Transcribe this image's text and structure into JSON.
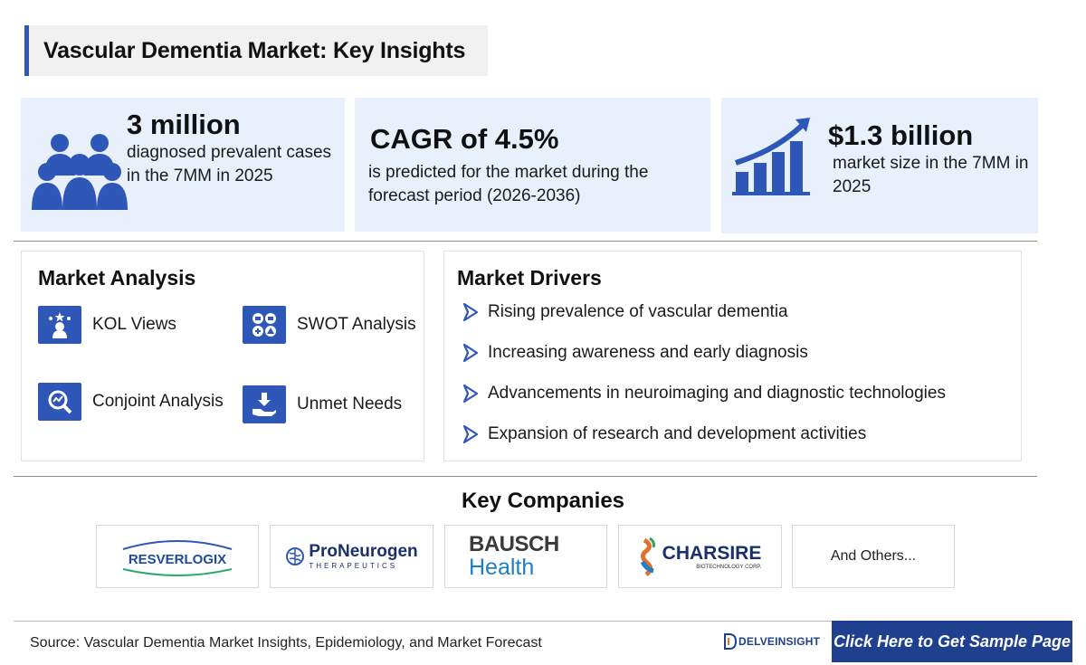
{
  "title": "Vascular Dementia Market: Key Insights",
  "stats": [
    {
      "headline": "3 million",
      "text": "diagnosed prevalent cases in the 7MM in 2025",
      "icon": "people-group-icon"
    },
    {
      "headline": "CAGR of 4.5%",
      "text": "is predicted for the market during the forecast period (2026-2036)"
    },
    {
      "headline": "$1.3 billion",
      "text": "market size in the 7MM in 2025",
      "icon": "growth-chart-icon"
    }
  ],
  "market_analysis": {
    "title": "Market Analysis",
    "items": [
      {
        "label": "KOL Views",
        "icon": "kol-views-icon"
      },
      {
        "label": "SWOT Analysis",
        "icon": "swot-analysis-icon"
      },
      {
        "label": "Conjoint Analysis",
        "icon": "conjoint-analysis-icon"
      },
      {
        "label": "Unmet Needs",
        "icon": "unmet-needs-icon"
      }
    ]
  },
  "market_drivers": {
    "title": "Market Drivers",
    "items": [
      "Rising prevalence of vascular dementia",
      "Increasing awareness and early diagnosis",
      "Advancements in neuroimaging and diagnostic technologies",
      "Expansion of research and development activities"
    ]
  },
  "key_companies": {
    "title": "Key Companies",
    "logos": {
      "resverlogix": "RESVERLOGIX",
      "proneurogen_name": "ProNeurogen",
      "proneurogen_sub": "THERAPEUTICS",
      "bausch_line1": "BAUSCH",
      "bausch_line2": "Health",
      "charsire_name": "CHARSIRE",
      "charsire_sub": "BIOTECHNOLOGY CORP."
    },
    "others": "And Others..."
  },
  "footer": {
    "source": "Source: Vascular Dementia Market Insights, Epidemiology, and Market Forecast",
    "brand": "DELVEINSIGHT",
    "cta": "Click Here to Get Sample Page"
  },
  "colors": {
    "accent": "#2f57b7",
    "stat_bg": "#e8f0fb",
    "cta_bg": "#1f3f8f"
  }
}
